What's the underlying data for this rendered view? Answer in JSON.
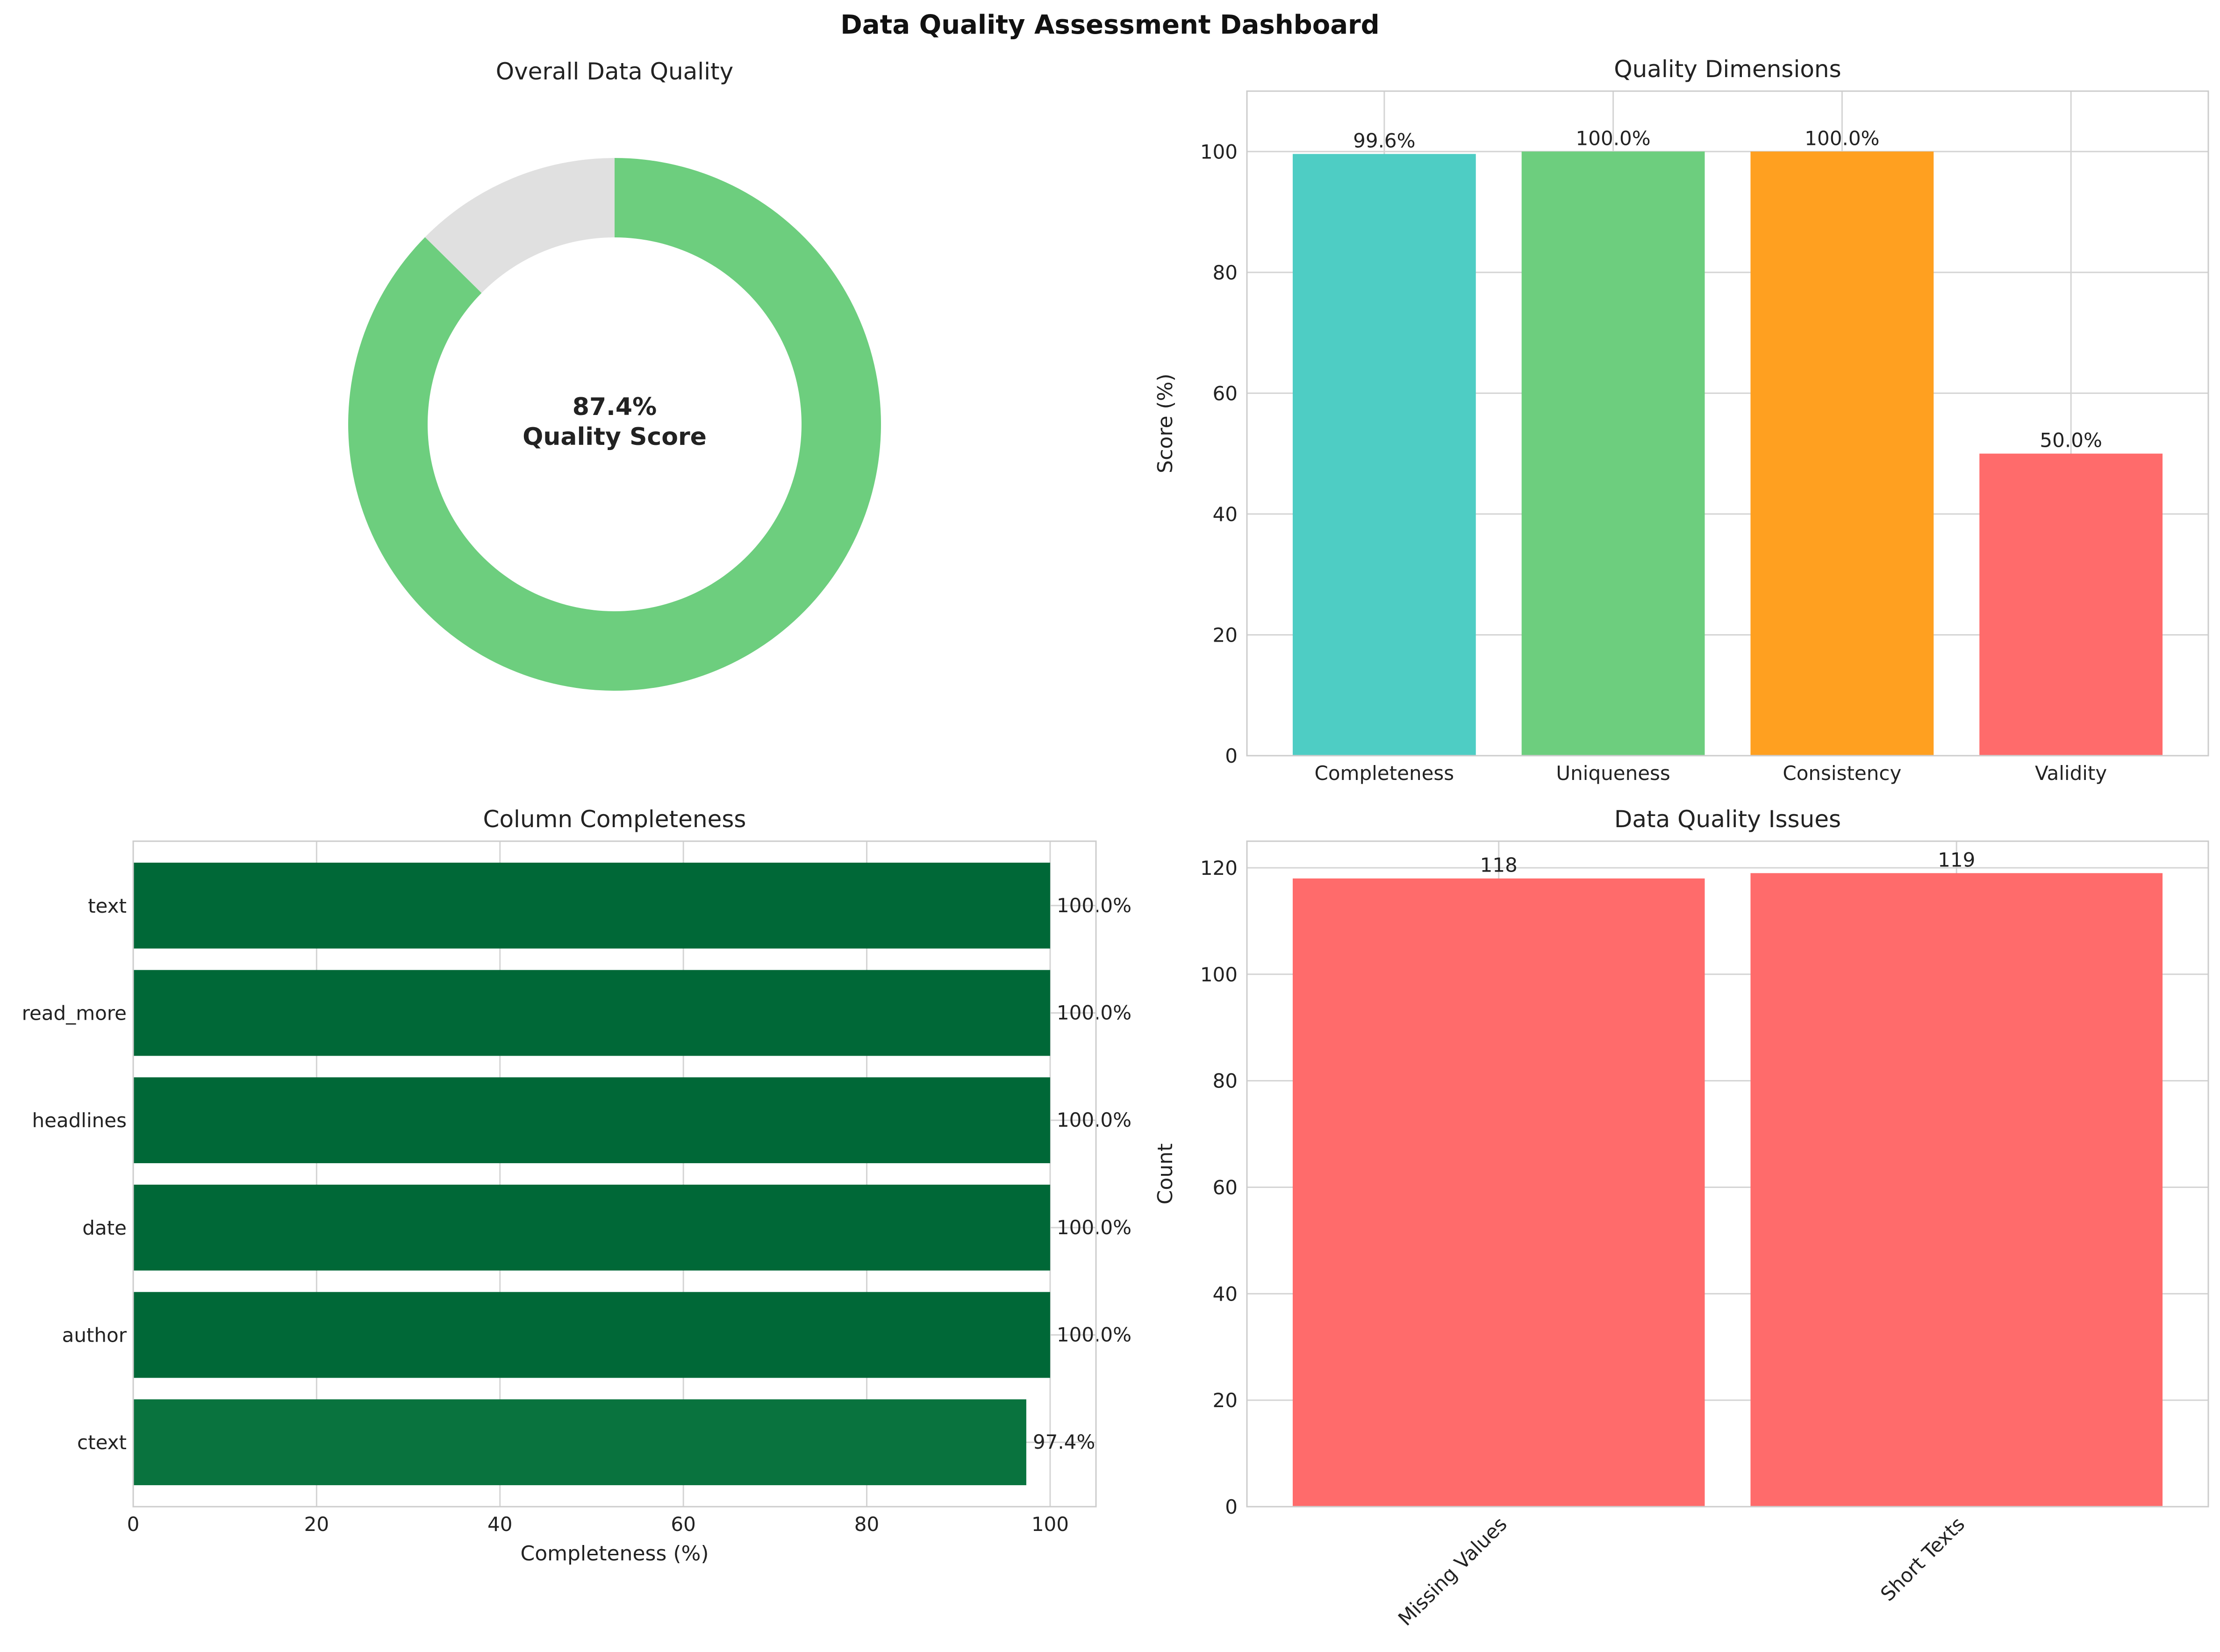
{
  "title": "Data Quality Assessment Dashboard",
  "chart_data": [
    {
      "id": "overall",
      "type": "pie",
      "title": "Overall Data Quality",
      "values": [
        87.4,
        12.6
      ],
      "colors": [
        "#6dce7e",
        "#e0e0e0"
      ],
      "center_value": "87.4%",
      "center_label": "Quality Score"
    },
    {
      "id": "dimensions",
      "type": "bar",
      "title": "Quality Dimensions",
      "categories": [
        "Completeness",
        "Uniqueness",
        "Consistency",
        "Validity"
      ],
      "values": [
        99.6,
        100.0,
        100.0,
        50.0
      ],
      "value_labels": [
        "99.6%",
        "100.0%",
        "100.0%",
        "50.0%"
      ],
      "colors": [
        "#4ecdc4",
        "#6dce7e",
        "#ffa020",
        "#ff6b6b"
      ],
      "xlabel": "",
      "ylabel": "Score (%)",
      "ylim": [
        0,
        110
      ],
      "yticks": [
        0,
        20,
        40,
        60,
        80,
        100
      ],
      "grid": true
    },
    {
      "id": "columns",
      "type": "bar",
      "orientation": "horizontal",
      "title": "Column Completeness",
      "categories": [
        "text",
        "read_more",
        "headlines",
        "date",
        "author",
        "ctext"
      ],
      "values": [
        100.0,
        100.0,
        100.0,
        100.0,
        100.0,
        97.4
      ],
      "value_labels": [
        "100.0%",
        "100.0%",
        "100.0%",
        "100.0%",
        "100.0%",
        "97.4%"
      ],
      "colors": [
        "#006837",
        "#006837",
        "#006837",
        "#006837",
        "#006837",
        "#09733e"
      ],
      "xlabel": "Completeness (%)",
      "ylabel": "",
      "xlim": [
        0,
        105
      ],
      "xticks": [
        0,
        20,
        40,
        60,
        80,
        100
      ],
      "grid": true
    },
    {
      "id": "issues",
      "type": "bar",
      "title": "Data Quality Issues",
      "categories": [
        "Missing Values",
        "Short Texts"
      ],
      "values": [
        118,
        119
      ],
      "value_labels": [
        "118",
        "119"
      ],
      "colors": [
        "#ff6b6b",
        "#ff6b6b"
      ],
      "xlabel": "",
      "ylabel": "Count",
      "ylim": [
        0,
        125
      ],
      "yticks": [
        0,
        20,
        40,
        60,
        80,
        100,
        120
      ],
      "grid": true
    }
  ]
}
